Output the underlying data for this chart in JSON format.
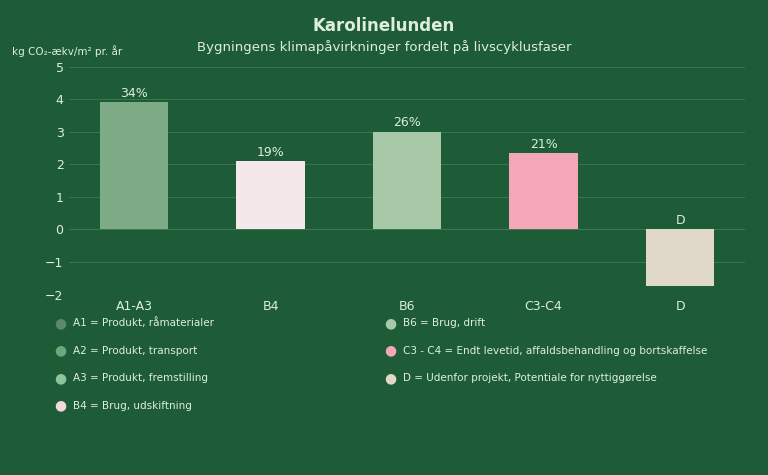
{
  "title": "Karolinelunden",
  "subtitle": "Bygningens klimapåvirkninger fordelt på livscyklusfaser",
  "ylabel": "kg CO₂-ækv/m² pr. år",
  "background_color": "#1e5c38",
  "categories": [
    "A1-A3",
    "B4",
    "B6",
    "C3-C4",
    "D"
  ],
  "values": [
    3.9,
    2.1,
    3.0,
    2.35,
    -1.75
  ],
  "labels": [
    "34%",
    "19%",
    "26%",
    "21%",
    "D"
  ],
  "bar_colors": [
    "#7dab85",
    "#f5e8ea",
    "#a8c9a8",
    "#f4a7b9",
    "#e0d8c8"
  ],
  "ylim": [
    -2,
    5
  ],
  "yticks": [
    -2,
    -1,
    0,
    1,
    2,
    3,
    4,
    5
  ],
  "grid_color": "#3d7a52",
  "text_color": "#ddeedd",
  "legend_col1": [
    {
      "label": "A1 = Produkt, råmaterialer",
      "color": "#5a8a6a"
    },
    {
      "label": "A2 = Produkt, transport",
      "color": "#6aaa7a"
    },
    {
      "label": "A3 = Produkt, fremstilling",
      "color": "#8ec49a"
    },
    {
      "label": "B4 = Brug, udskiftning",
      "color": "#f0d8dc"
    }
  ],
  "legend_col2": [
    {
      "label": "B6 = Brug, drift",
      "color": "#a8c9a8"
    },
    {
      "label": "C3 - C4 = Endt levetid, affaldsbehandling og bortskaffelse",
      "color": "#f4a7b9"
    },
    {
      "label": "D = Udenfor projekt, Potentiale for nyttiggørelse",
      "color": "#e0d8c8"
    }
  ]
}
